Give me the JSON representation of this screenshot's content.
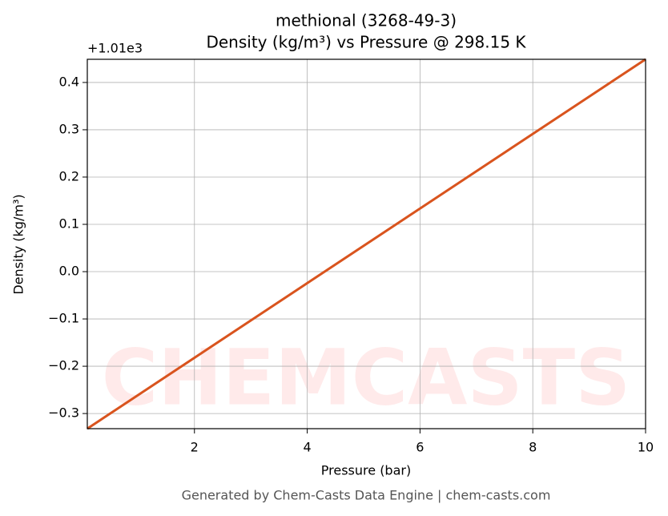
{
  "chart_data": {
    "type": "line",
    "title": "methional (3268-49-3)",
    "subtitle": "Density (kg/m³) vs Pressure @ 298.15 K",
    "x_label": "Pressure (bar)",
    "y_label": "Density (kg/m³)",
    "y_offset_label": "+1.01e3",
    "watermark": "CHEMCASTS",
    "footer": "Generated by Chem-Casts Data Engine | chem-casts.com",
    "x": [
      0.1,
      10
    ],
    "series": [
      {
        "name": "Density",
        "color": "#d9541e",
        "values": [
          -0.332,
          0.449
        ]
      }
    ],
    "xlim": [
      0.1,
      10
    ],
    "xticks": [
      2,
      4,
      6,
      8,
      10
    ],
    "ylim": [
      -0.332,
      0.449
    ],
    "yticks": [
      {
        "value": -0.3,
        "label": "−0.3"
      },
      {
        "value": -0.2,
        "label": "−0.2"
      },
      {
        "value": -0.1,
        "label": "−0.1"
      },
      {
        "value": 0,
        "label": "0.0"
      },
      0.1,
      0.2,
      0.3,
      0.4
    ],
    "grid": true
  }
}
